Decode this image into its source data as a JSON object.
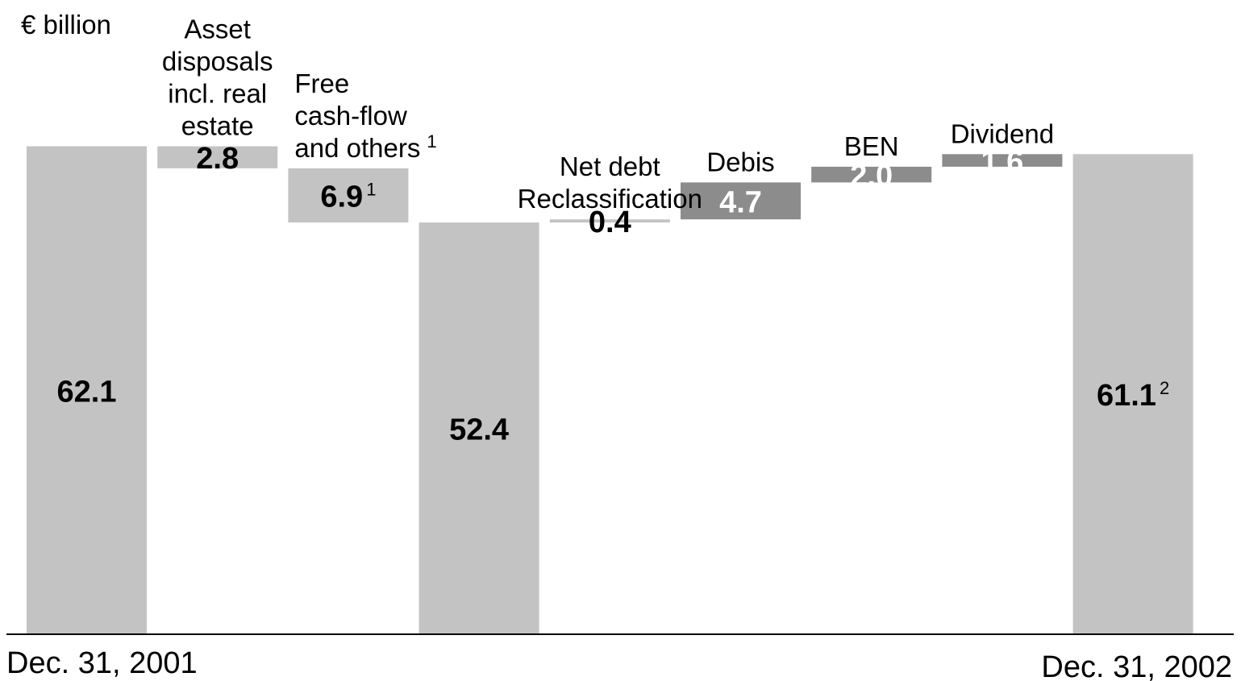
{
  "chart_data": {
    "type": "bar",
    "subtype": "waterfall",
    "unit_label": "€ billion",
    "colors": {
      "light_bar": "#c3c3c3",
      "dark_bar": "#8c8c8c",
      "axis": "#000000",
      "text_dark": "#000000",
      "text_light": "#ffffff"
    },
    "bars": [
      {
        "key": "start",
        "label_lines": [],
        "value": 62.1,
        "value_label": "62.1",
        "kind": "total",
        "shade": "light",
        "footnote": ""
      },
      {
        "key": "asset_disposals",
        "label_lines": [
          "Asset",
          "disposals",
          "incl. real",
          "estate"
        ],
        "value": -2.8,
        "value_label": "2.8",
        "kind": "change",
        "shade": "light",
        "footnote": ""
      },
      {
        "key": "free_cash_flow",
        "label_lines": [
          "Free",
          "cash-flow",
          "and others"
        ],
        "value": -6.9,
        "value_label": "6.9",
        "kind": "change",
        "shade": "light",
        "footnote": "1"
      },
      {
        "key": "subtotal",
        "label_lines": [],
        "value": 52.4,
        "value_label": "52.4",
        "kind": "total",
        "shade": "light",
        "footnote": ""
      },
      {
        "key": "reclassification",
        "label_lines": [
          "Net debt",
          "Reclassification"
        ],
        "value": 0.4,
        "value_label": "0.4",
        "kind": "change",
        "shade": "light",
        "footnote": ""
      },
      {
        "key": "debis",
        "label_lines": [
          "Debis"
        ],
        "value": 4.7,
        "value_label": "4.7",
        "kind": "change",
        "shade": "dark",
        "footnote": ""
      },
      {
        "key": "ben",
        "label_lines": [
          "BEN"
        ],
        "value": 2.0,
        "value_label": "2.0",
        "kind": "change",
        "shade": "dark",
        "footnote": ""
      },
      {
        "key": "dividend",
        "label_lines": [
          "Dividend"
        ],
        "value": 1.6,
        "value_label": "1.6",
        "kind": "change",
        "shade": "dark",
        "footnote": ""
      },
      {
        "key": "end",
        "label_lines": [],
        "value": 61.1,
        "value_label": "61.1",
        "kind": "total",
        "shade": "light",
        "footnote": "2"
      }
    ],
    "x_labels": {
      "start": "Dec. 31, 2001",
      "end": "Dec. 31, 2002"
    },
    "grid": false,
    "legend": "none"
  }
}
